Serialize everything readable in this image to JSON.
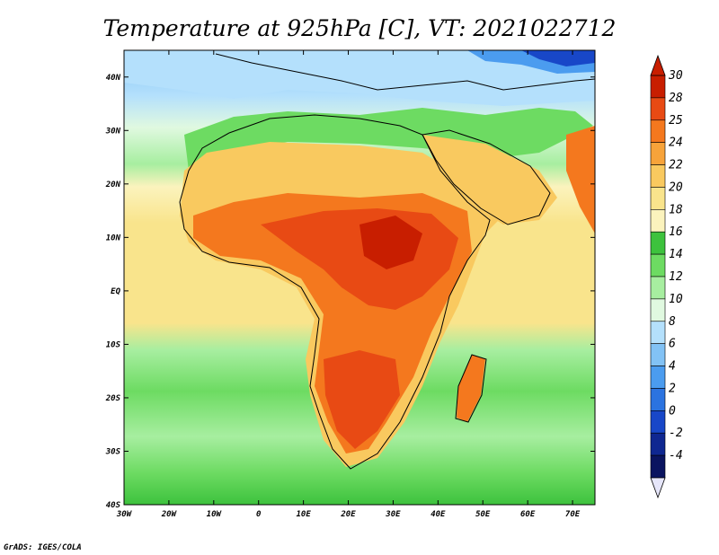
{
  "title": "Temperature at 925hPa [C], VT: 2021022712",
  "credit": "GrADS: IGES/COLA",
  "map": {
    "x_ticks": [
      "30W",
      "20W",
      "10W",
      "0",
      "10E",
      "20E",
      "30E",
      "40E",
      "50E",
      "60E",
      "70E"
    ],
    "y_ticks": [
      "40N",
      "30N",
      "20N",
      "10N",
      "EQ",
      "10S",
      "20S",
      "30S",
      "40S"
    ],
    "lon_range": [
      -30,
      75
    ],
    "lat_range": [
      -40,
      45
    ]
  },
  "colorbar": {
    "labels": [
      "30",
      "28",
      "25",
      "24",
      "22",
      "20",
      "18",
      "16",
      "14",
      "12",
      "10",
      "8",
      "6",
      "4",
      "2",
      "0",
      "-2",
      "-4"
    ],
    "colors": [
      "#c81e00",
      "#e84a14",
      "#f4781e",
      "#f7a33a",
      "#f9c95f",
      "#f9e48c",
      "#fbf3bd",
      "#3dc23d",
      "#6ddb62",
      "#a7eea0",
      "#e0f9e0",
      "#b4e0fc",
      "#82c2f5",
      "#4b9cef",
      "#2b73e0",
      "#1847c8",
      "#0f2791",
      "#0a1460"
    ],
    "top_arrow_color": "#c81e00",
    "bottom_arrow_color": "#e6e6fa"
  }
}
